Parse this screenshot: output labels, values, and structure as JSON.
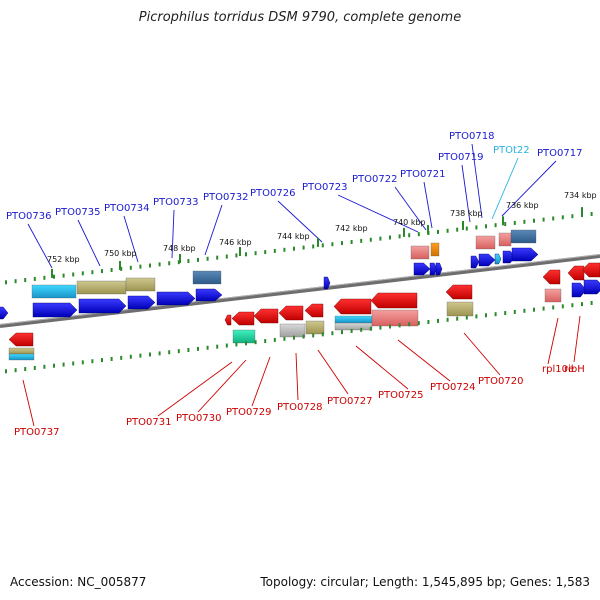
{
  "title": "Picrophilus torridus DSM 9790, complete genome",
  "footer": {
    "accession": "Accession: NC_005877",
    "topology": "Topology: circular; Length: 1,545,895 bp; Genes: 1,583"
  },
  "colors": {
    "plus_strand_label": "#1a1ad0",
    "minus_strand_label": "#cc0000",
    "rna_label": "#28b4e0",
    "backbone": "#808080",
    "ticks": "#2a8a2a"
  },
  "ruler": {
    "top_ticks": [
      "752 kbp",
      "750 kbp",
      "748 kbp",
      "746 kbp",
      "744 kbp",
      "742 kbp",
      "740 kbp",
      "738 kbp",
      "736 kbp",
      "734 kbp"
    ]
  },
  "gene_labels": {
    "plus": [
      "PTO0736",
      "PTO0735",
      "PTO0734",
      "PTO0733",
      "PTO0732",
      "PTO0726",
      "PTO0723",
      "PTO0722",
      "PTO0721",
      "PTO0719",
      "PTO0718",
      "PTO0717"
    ],
    "rna": [
      "PTOt22"
    ],
    "minus": [
      "PTO0737",
      "PTO0731",
      "PTO0730",
      "PTO0729",
      "PTO0728",
      "PTO0727",
      "PTO0725",
      "PTO0724",
      "PTO0720",
      "rpl10e",
      "ribH"
    ]
  }
}
